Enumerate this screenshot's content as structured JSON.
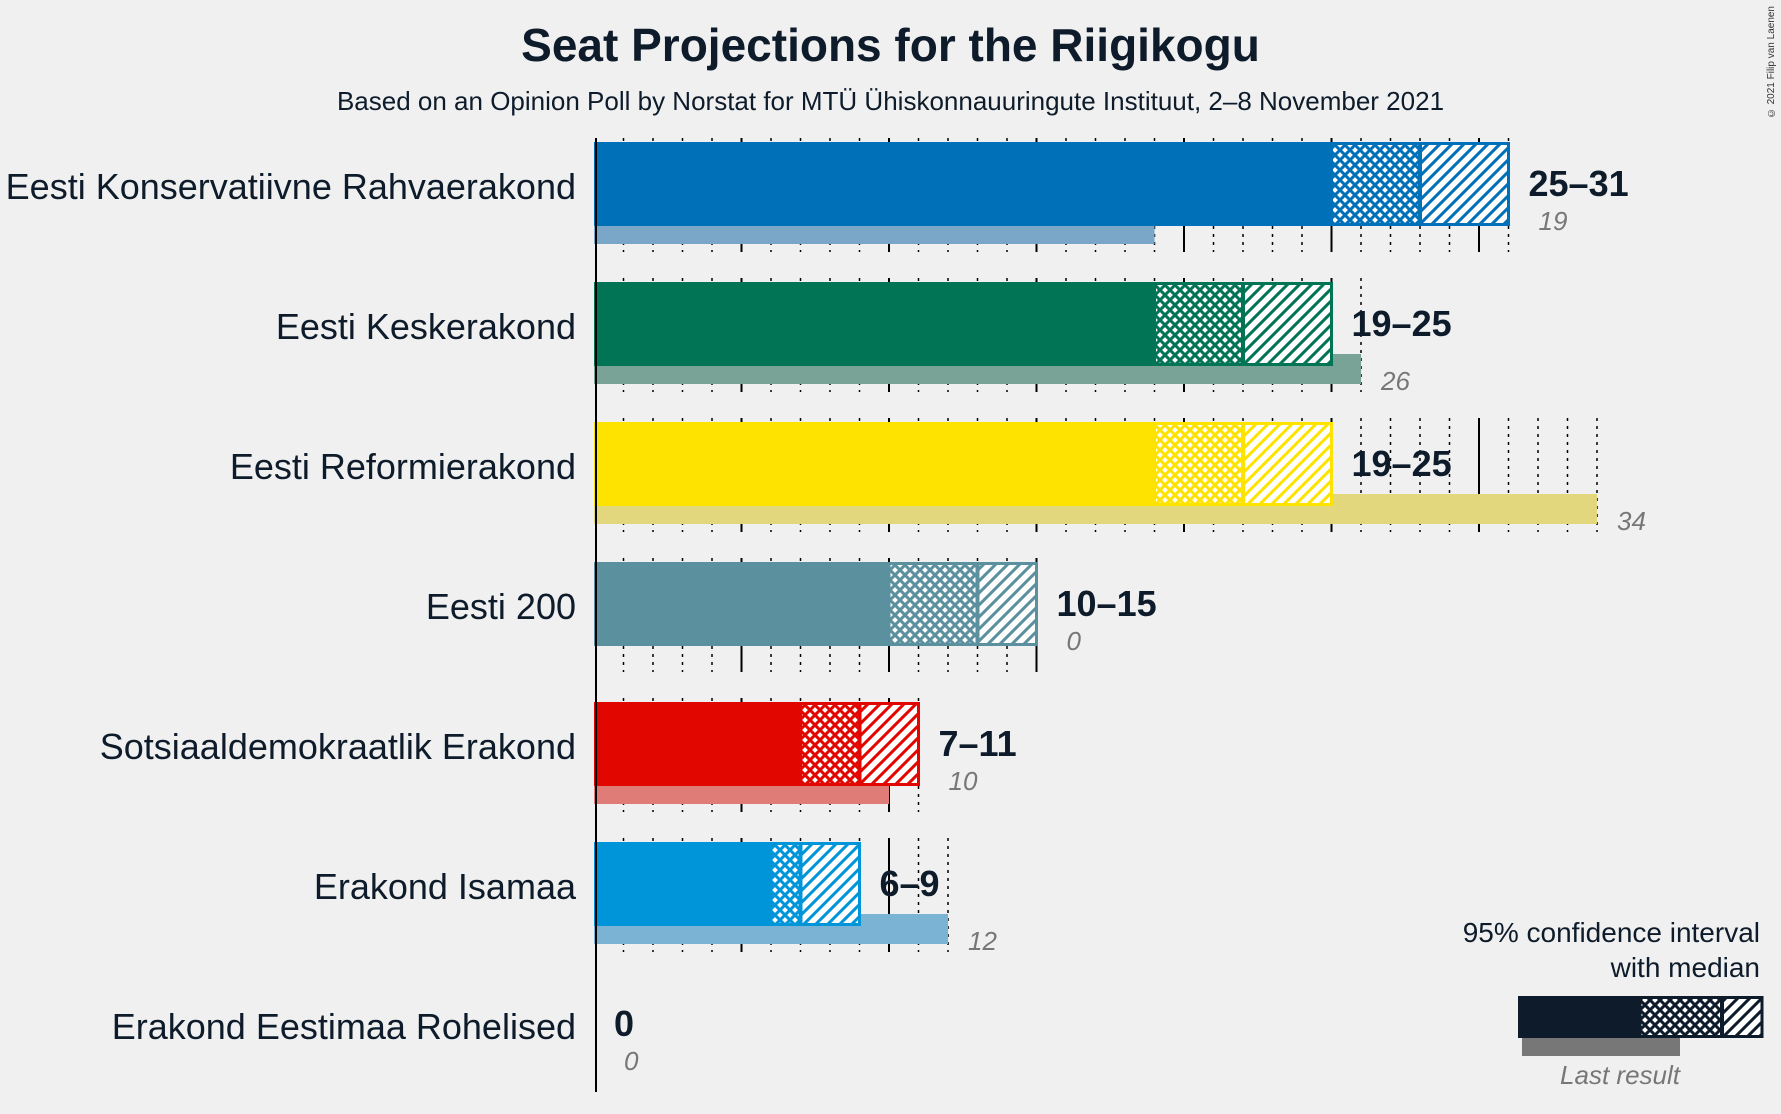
{
  "title": "Seat Projections for the Riigikogu",
  "subtitle": "Based on an Opinion Poll by Norstat for MTÜ Ühiskonnauuringute Instituut, 2–8 November 2021",
  "copyright": "© 2021 Filip van Laenen",
  "legend": {
    "line1": "95% confidence interval",
    "line2": "with median",
    "last_result": "Last result",
    "color": "#0d1b2a"
  },
  "chart_data": {
    "type": "bar",
    "orientation": "horizontal",
    "title": "Seat Projections for the Riigikogu",
    "subtitle": "Based on an Opinion Poll by Norstat for MTÜ Ühiskonnauuringute Instituut, 2–8 November 2021",
    "xlim": [
      0,
      35
    ],
    "grid": "dotted every seat, solid every 5 seats",
    "legend_position": "bottom-right",
    "parties": [
      {
        "name": "Eesti Konservatiivne Rahvaerakond",
        "low": 25,
        "median": 28,
        "high": 31,
        "range_label": "25–31",
        "last": 19,
        "last_label": "19",
        "color": "#0070b8",
        "last_color": "#7aa7c8"
      },
      {
        "name": "Eesti Keskerakond",
        "low": 19,
        "median": 22,
        "high": 25,
        "range_label": "19–25",
        "last": 26,
        "last_label": "26",
        "color": "#007455",
        "last_color": "#78a396"
      },
      {
        "name": "Eesti Reformierakond",
        "low": 19,
        "median": 22,
        "high": 25,
        "range_label": "19–25",
        "last": 34,
        "last_label": "34",
        "color": "#ffe300",
        "last_color": "#e2d77c"
      },
      {
        "name": "Eesti 200",
        "low": 10,
        "median": 13,
        "high": 15,
        "range_label": "10–15",
        "last": 0,
        "last_label": "0",
        "color": "#5b909e",
        "last_color": "#9fbbc2"
      },
      {
        "name": "Sotsiaaldemokraatlik Erakond",
        "low": 7,
        "median": 9,
        "high": 11,
        "range_label": "7–11",
        "last": 10,
        "last_label": "10",
        "color": "#e10600",
        "last_color": "#e07c78"
      },
      {
        "name": "Erakond Isamaa",
        "low": 6,
        "median": 7,
        "high": 9,
        "range_label": "6–9",
        "last": 12,
        "last_label": "12",
        "color": "#0095d9",
        "last_color": "#7ab3d4"
      },
      {
        "name": "Erakond Eestimaa Rohelised",
        "low": 0,
        "median": 0,
        "high": 0,
        "range_label": "0",
        "last": 0,
        "last_label": "0",
        "color": "#4caf50",
        "last_color": "#a5cfa7"
      }
    ]
  }
}
